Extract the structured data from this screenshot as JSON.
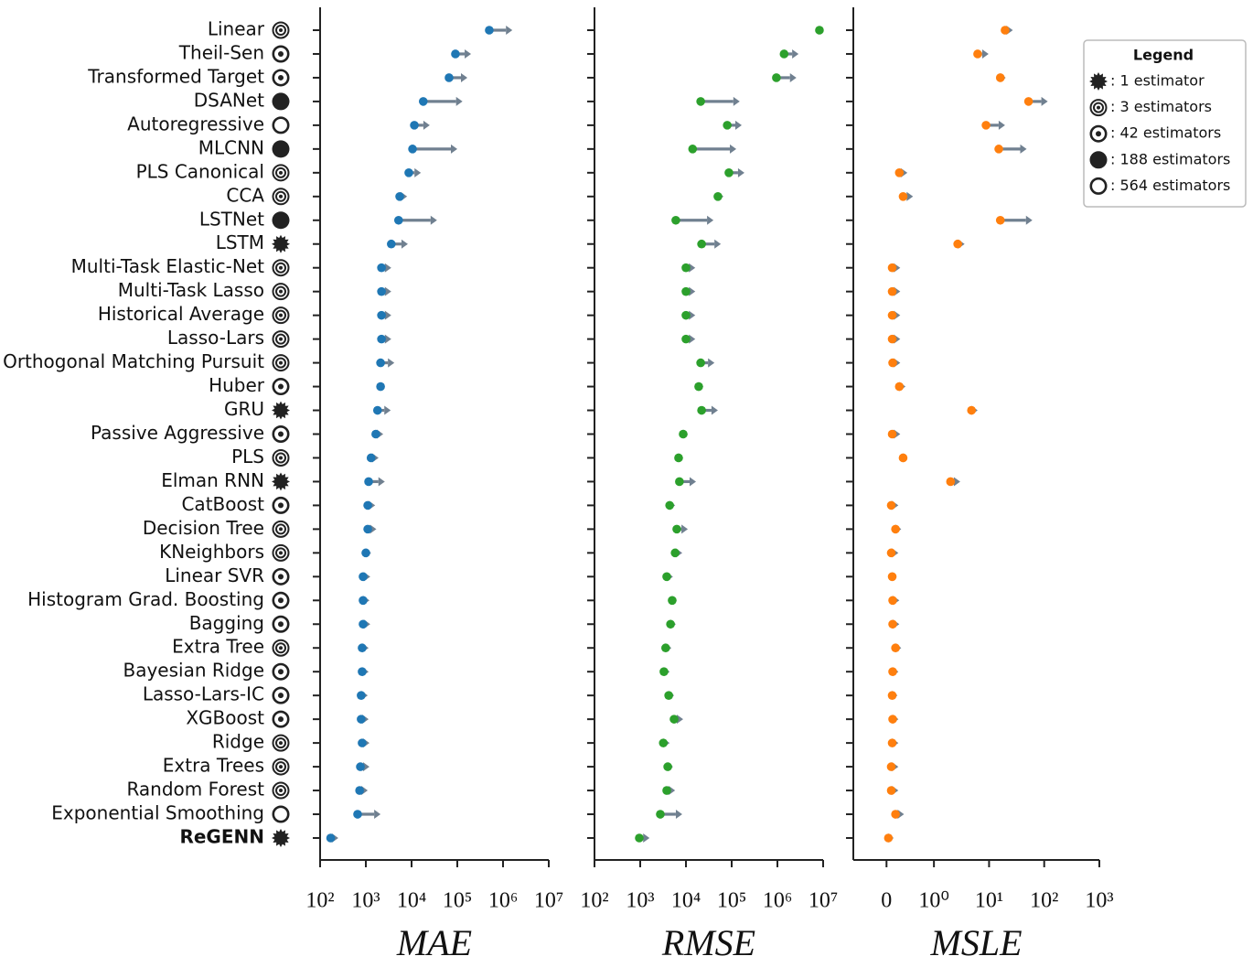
{
  "chart_data": {
    "type": "dot-arrow",
    "categories": [
      "Linear",
      "Theil-Sen",
      "Transformed Target",
      "DSANet",
      "Autoregressive",
      "MLCNN",
      "PLS Canonical",
      "CCA",
      "LSTNet",
      "LSTM",
      "Multi-Task Elastic-Net",
      "Multi-Task Lasso",
      "Historical Average",
      "Lasso-Lars",
      "Orthogonal Matching Pursuit",
      "Huber",
      "GRU",
      "Passive Aggressive",
      "PLS",
      "Elman RNN",
      "CatBoost",
      "Decision Tree",
      "KNeighbors",
      "Linear SVR",
      "Histogram Grad. Boosting",
      "Bagging",
      "Extra Tree",
      "Bayesian Ridge",
      "Lasso-Lars-IC",
      "XGBoost",
      "Ridge",
      "Extra Trees",
      "Random Forest",
      "Exponential Smoothing",
      "ReGENN"
    ],
    "marker_groups": [
      1,
      2,
      2,
      3,
      4,
      3,
      1,
      1,
      3,
      0,
      1,
      1,
      1,
      1,
      1,
      2,
      0,
      2,
      1,
      0,
      2,
      1,
      1,
      2,
      2,
      2,
      1,
      2,
      2,
      2,
      1,
      1,
      1,
      4,
      0
    ],
    "highlight_index": 34,
    "legend": {
      "title": "Legend",
      "entries": [
        ": 1 estimator",
        ": 3 estimators",
        ": 42 estimators",
        ": 188 estimators",
        ": 564 estimators"
      ]
    },
    "arrow_color": "#708090",
    "panels": [
      {
        "xlabel": "MAE",
        "scale": "log",
        "color": "#1f77b4",
        "xlim": [
          100,
          10000000
        ],
        "xticks": [
          {
            "value": 100,
            "label": "10²"
          },
          {
            "value": 1000,
            "label": "10³"
          },
          {
            "value": 10000,
            "label": "10⁴"
          },
          {
            "value": 100000,
            "label": "10⁵"
          },
          {
            "value": 1000000,
            "label": "10⁶"
          },
          {
            "value": 10000000,
            "label": "10⁷"
          }
        ],
        "values": [
          500000,
          91000,
          66000,
          18000,
          11500,
          10500,
          8700,
          5500,
          5200,
          3600,
          2200,
          2200,
          2200,
          2200,
          2100,
          2100,
          1800,
          1650,
          1300,
          1150,
          1100,
          1100,
          1000,
          870,
          870,
          870,
          830,
          830,
          790,
          790,
          830,
          760,
          730,
          660,
          170
        ],
        "ends": [
          1600000,
          200000,
          166000,
          130000,
          25000,
          100000,
          16000,
          8000,
          36000,
          8300,
          3600,
          3600,
          3600,
          3600,
          4200,
          2600,
          3500,
          2400,
          1900,
          2600,
          1600,
          1700,
          1300,
          1250,
          1200,
          1250,
          1150,
          1150,
          1100,
          1150,
          1200,
          1200,
          1100,
          2100,
          250
        ]
      },
      {
        "xlabel": "RMSE",
        "scale": "log",
        "color": "#2ca02c",
        "xlim": [
          100,
          10000000
        ],
        "xticks": [
          {
            "value": 100,
            "label": "10²"
          },
          {
            "value": 1000,
            "label": "10³"
          },
          {
            "value": 10000,
            "label": "10⁴"
          },
          {
            "value": 100000,
            "label": "10⁵"
          },
          {
            "value": 1000000,
            "label": "10⁶"
          },
          {
            "value": 10000000,
            "label": "10⁷"
          }
        ],
        "values": [
          8300000,
          1400000,
          950000,
          21000,
          80000,
          14000,
          87000,
          50000,
          6000,
          22000,
          10000,
          10000,
          10000,
          10000,
          21000,
          19000,
          22000,
          8700,
          6900,
          7200,
          4400,
          6300,
          5800,
          3800,
          5000,
          4600,
          3600,
          3300,
          4200,
          5500,
          3200,
          4000,
          3800,
          2750,
          955
        ],
        "ends": [
          9500000,
          2900000,
          2600000,
          150000,
          166000,
          126000,
          190000,
          66000,
          40000,
          58000,
          16000,
          16000,
          16000,
          16000,
          42000,
          24000,
          50000,
          11000,
          8700,
          16600,
          5800,
          11000,
          8300,
          5200,
          6300,
          6000,
          4800,
          4400,
          5500,
          8700,
          4400,
          5200,
          5800,
          8300,
          1600
        ]
      },
      {
        "xlabel": "MSLE",
        "scale": "symlog",
        "color": "#ff7f0e",
        "xlim": [
          -0.7,
          1000
        ],
        "xticks": [
          0,
          {
            "value": 1,
            "label": "10⁰"
          },
          {
            "value": 10,
            "label": "10¹"
          },
          {
            "value": 100,
            "label": "10²"
          },
          {
            "value": 1000,
            "label": "10³"
          }
        ],
        "values": [
          19.5,
          6.2,
          16,
          52,
          8.8,
          15,
          0.27,
          0.35,
          16,
          2.7,
          0.12,
          0.12,
          0.12,
          0.12,
          0.13,
          0.27,
          4.8,
          0.12,
          0.35,
          2,
          0.1,
          0.19,
          0.1,
          0.12,
          0.13,
          0.13,
          0.19,
          0.13,
          0.12,
          0.13,
          0.12,
          0.1,
          0.1,
          0.19,
          0.04
        ],
        "ends": [
          27,
          9.8,
          20,
          116,
          19.5,
          48,
          0.44,
          0.56,
          61,
          3.6,
          0.29,
          0.29,
          0.29,
          0.29,
          0.29,
          0.4,
          6.2,
          0.29,
          0.44,
          3,
          0.25,
          0.31,
          0.25,
          0.21,
          0.27,
          0.27,
          0.31,
          0.25,
          0.23,
          0.25,
          0.25,
          0.25,
          0.25,
          0.37,
          0.15
        ]
      }
    ]
  }
}
